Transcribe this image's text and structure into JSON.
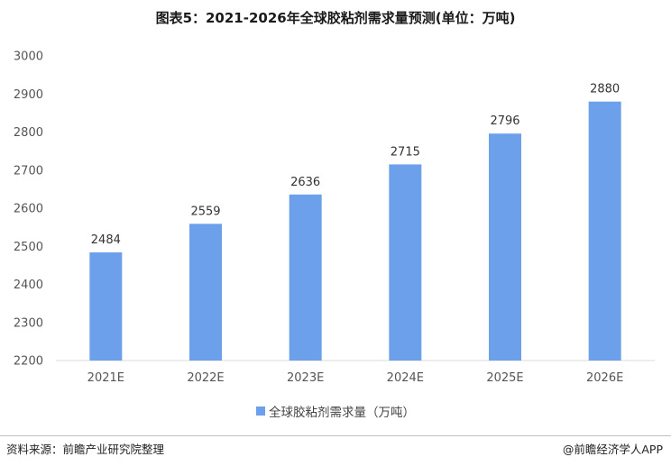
{
  "title": "图表5：2021-2026年全球胶粘剂需求量预测(单位：万吨)",
  "chart_data": {
    "type": "bar",
    "categories": [
      "2021E",
      "2022E",
      "2023E",
      "2024E",
      "2025E",
      "2026E"
    ],
    "series": [
      {
        "name": "全球胶粘剂需求量（万吨）",
        "values": [
          2484,
          2559,
          2636,
          2715,
          2796,
          2880
        ],
        "color": "#6ca0ea"
      }
    ],
    "ylim": [
      2200,
      3000
    ],
    "yticks": [
      2200,
      2300,
      2400,
      2500,
      2600,
      2700,
      2800,
      2900,
      3000
    ],
    "grid": false,
    "legend_position": "bottom"
  },
  "footer": {
    "source": "资料来源：前瞻产业研究院整理",
    "brand": "@前瞻经济学人APP"
  }
}
